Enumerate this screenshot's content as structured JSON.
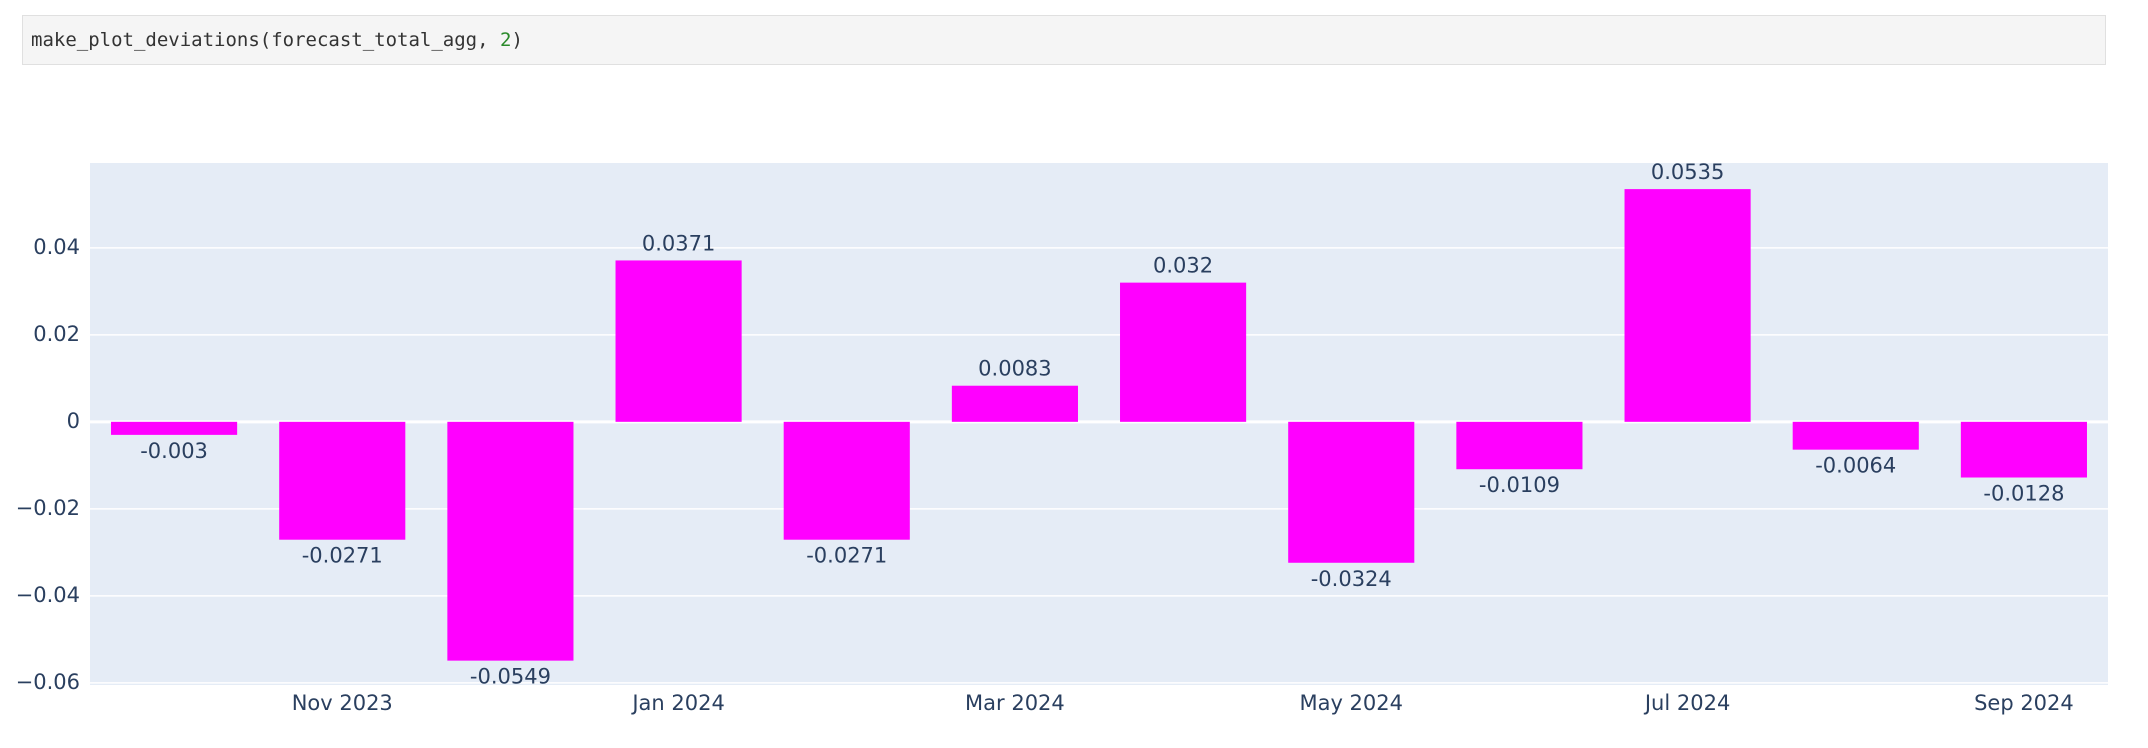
{
  "code_cell": [
    "make_plot_deviations(forecast_total_agg, ",
    "2",
    ")"
  ],
  "chart_data": {
    "type": "bar",
    "categories": [
      null,
      "Nov 2023",
      null,
      "Jan 2024",
      null,
      "Mar 2024",
      null,
      "May 2024",
      null,
      "Jul 2024",
      null,
      "Sep 2024"
    ],
    "values": [
      -0.003,
      -0.0271,
      -0.0549,
      0.0371,
      -0.0271,
      0.0083,
      0.032,
      -0.0324,
      -0.0109,
      0.0535,
      -0.0064,
      -0.0128
    ],
    "color": "#ff00ff",
    "ylim": [
      -0.0605,
      0.0595
    ],
    "yticks": [
      {
        "value": -0.06,
        "label": "−0.06"
      },
      {
        "value": -0.04,
        "label": "−0.04"
      },
      {
        "value": -0.02,
        "label": "−0.02"
      },
      0,
      0.02,
      0.04
    ],
    "grid": true
  }
}
